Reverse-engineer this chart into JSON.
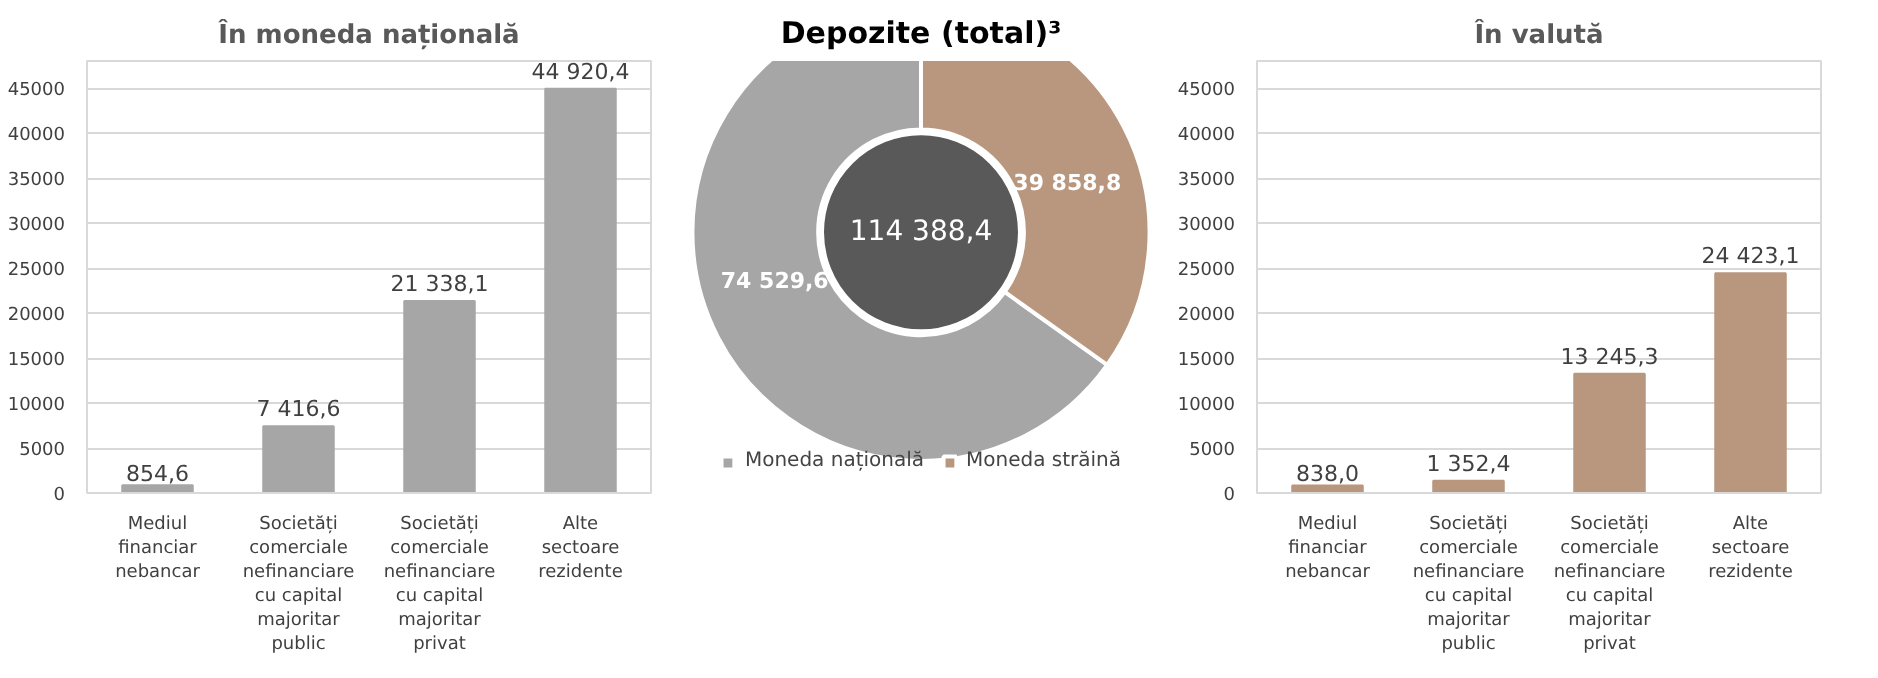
{
  "chart_data": [
    {
      "type": "bar",
      "title": "În moneda națională",
      "categories": [
        "Mediul\nfinanciar\nnebancar",
        "Societăți\ncomerciale\nnefinanciare\ncu capital\nmajoritar\npublic",
        "Societăți\ncomerciale\nnefinanciare\ncu capital\nmajoritar\nprivat",
        "Alte\nsectoare\nrezidente"
      ],
      "values": [
        854.6,
        7416.6,
        21338.1,
        44920.4
      ],
      "value_labels": [
        "854,6",
        "7 416,6",
        "21 338,1",
        "44 920,4"
      ],
      "color": "#a6a6a6",
      "ylim": [
        0,
        48000
      ],
      "yticks": [
        0,
        5000,
        10000,
        15000,
        20000,
        25000,
        30000,
        35000,
        40000,
        45000
      ],
      "grid": "y"
    },
    {
      "type": "donut",
      "title": "Depozite (total)³",
      "categories": [
        "Moneda națională",
        "Moneda străină"
      ],
      "values": [
        74529.6,
        39858.8
      ],
      "value_labels": [
        "74 529,6",
        "39 858,8"
      ],
      "colors": [
        "#a6a6a6",
        "#b8977e"
      ],
      "annotations": [
        "114 388,4"
      ],
      "legend": "bottom"
    },
    {
      "type": "bar",
      "title": "În valută",
      "categories": [
        "Mediul\nfinanciar\nnebancar",
        "Societăți\ncomerciale\nnefinanciare\ncu capital\nmajoritar\npublic",
        "Societăți\ncomerciale\nnefinanciare\ncu capital\nmajoritar\nprivat",
        "Alte\nsectoare\nrezidente"
      ],
      "values": [
        838.0,
        1352.4,
        13245.3,
        24423.1
      ],
      "value_labels": [
        "838,0",
        "1 352,4",
        "13 245,3",
        "24 423,1"
      ],
      "color": "#b8977e",
      "ylim": [
        0,
        48000
      ],
      "yticks": [
        0,
        5000,
        10000,
        15000,
        20000,
        25000,
        30000,
        35000,
        40000,
        45000
      ],
      "grid": "y"
    }
  ]
}
